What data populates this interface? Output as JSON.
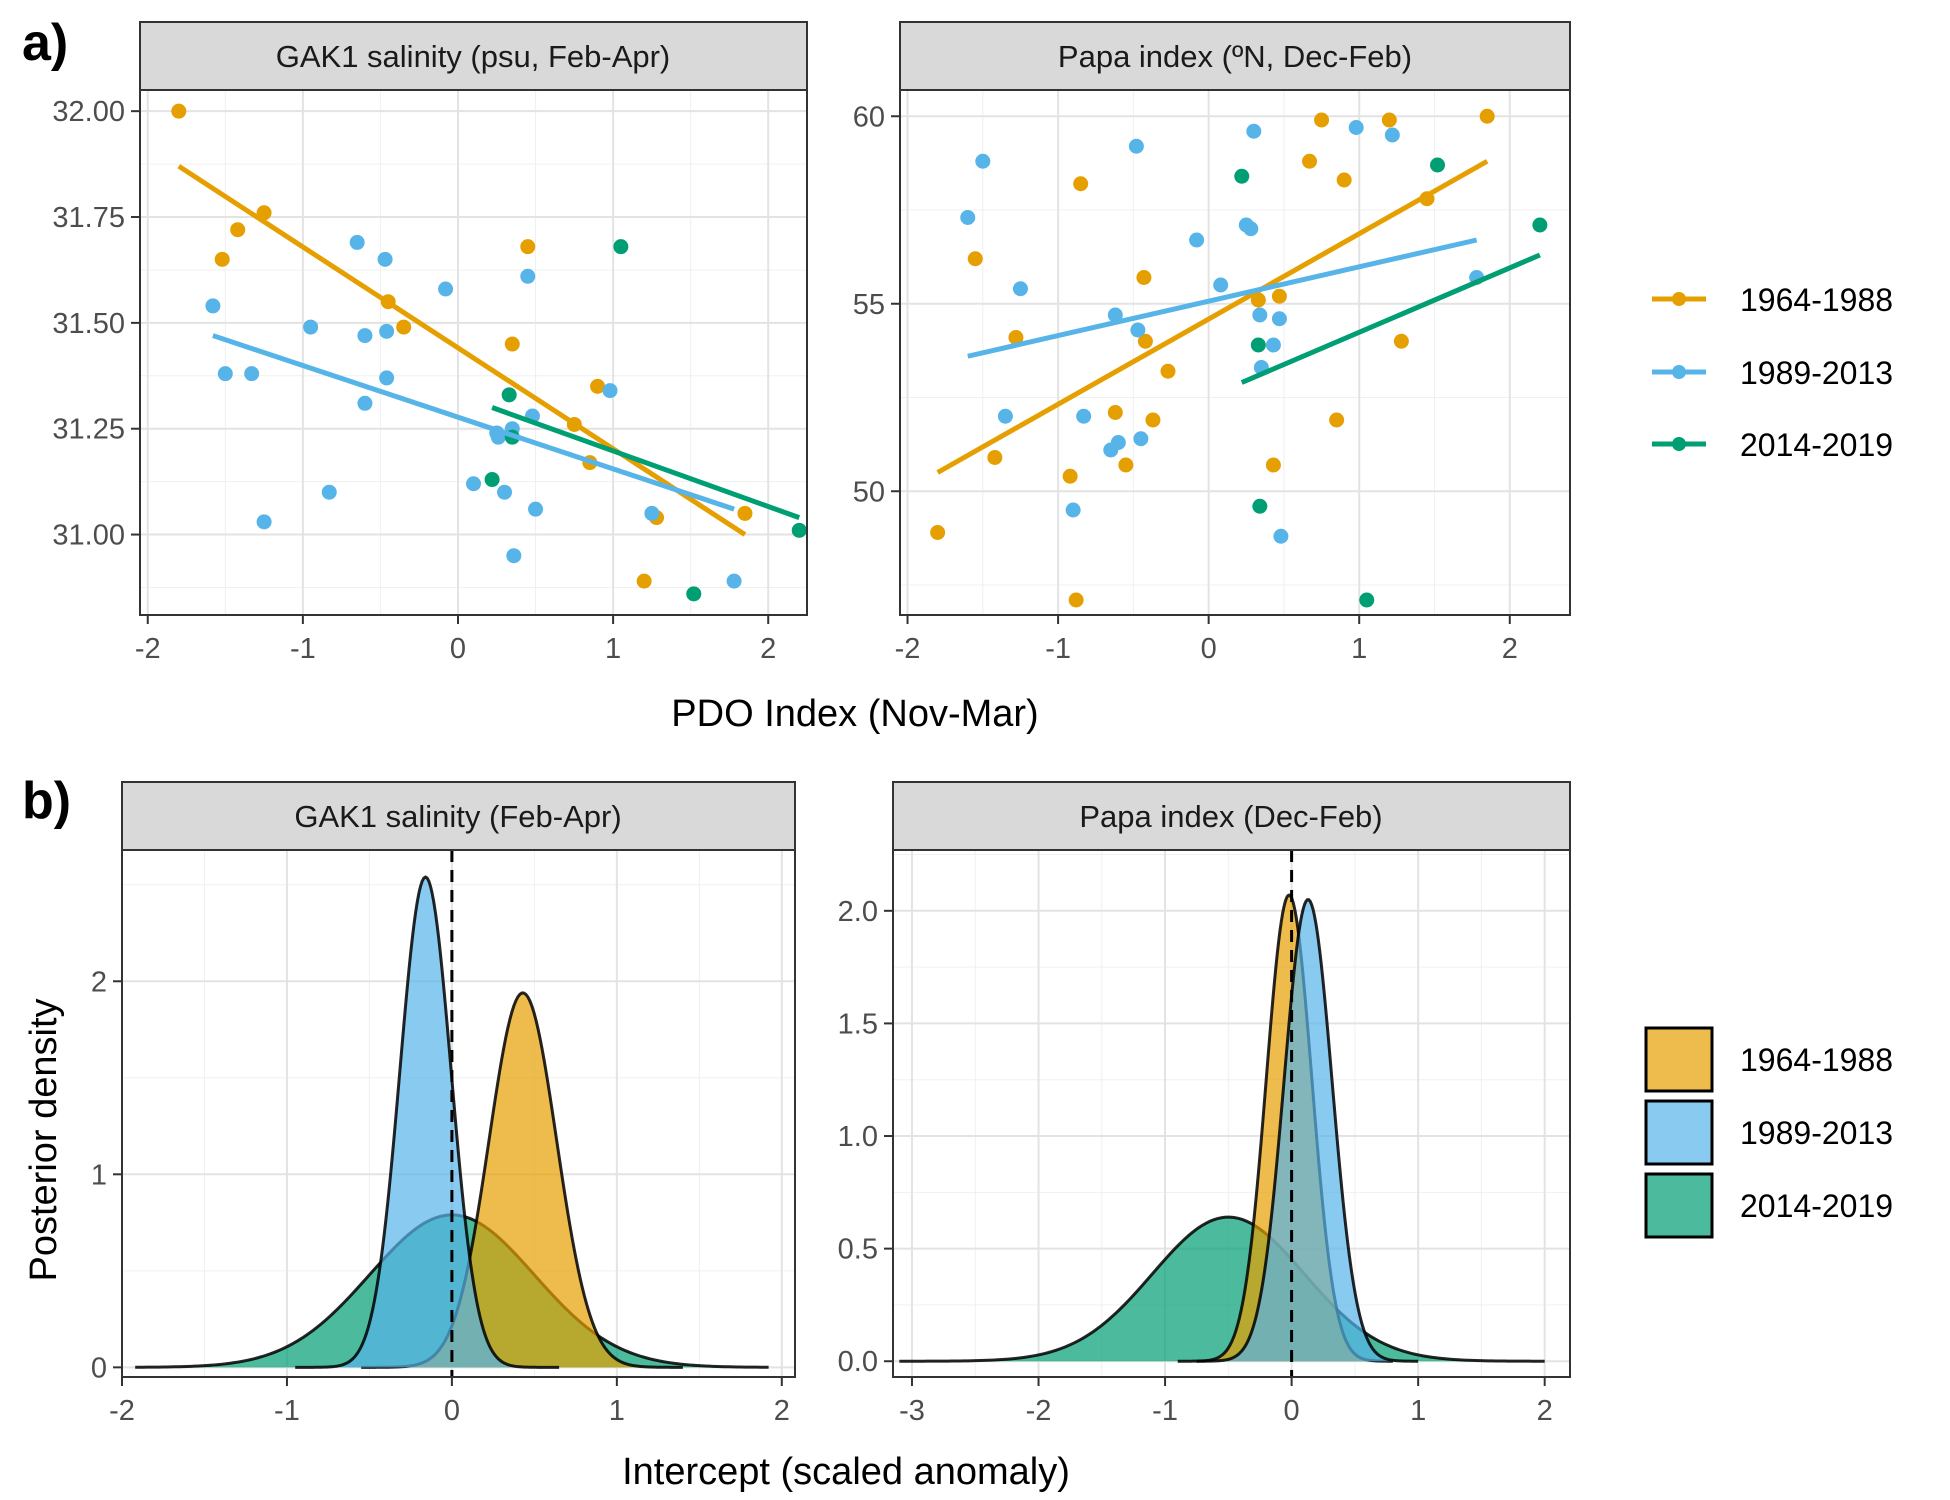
{
  "figure": {
    "label_a": "a)",
    "label_b": "b)",
    "xlabel_a": "PDO Index (Nov-Mar)",
    "xlabel_b": "Intercept (scaled anomaly)",
    "ylabel_b": "Posterior density"
  },
  "legend_a": [
    {
      "label": "1964-1988",
      "color": "#E69F00"
    },
    {
      "label": "1989-2013",
      "color": "#56B4E9"
    },
    {
      "label": "2014-2019",
      "color": "#009E73"
    }
  ],
  "legend_b": [
    {
      "label": "1964-1988",
      "color": "#E69F00"
    },
    {
      "label": "1989-2013",
      "color": "#56B4E9"
    },
    {
      "label": "2014-2019",
      "color": "#009E73"
    }
  ],
  "chart_data": [
    {
      "type": "scatter",
      "title": "GAK1 salinity (psu, Feb-Apr)",
      "xlabel": "PDO Index (Nov-Mar)",
      "ylabel": "",
      "xlim": [
        -2.05,
        2.25
      ],
      "ylim": [
        30.81,
        32.05
      ],
      "xticks": [
        -2,
        -1,
        0,
        1,
        2
      ],
      "xtick_labels": [
        "-2",
        "-1",
        "0",
        "1",
        "2"
      ],
      "yticks": [
        31.0,
        31.25,
        31.5,
        31.75,
        32.0
      ],
      "ytick_labels": [
        "31.00",
        "31.25",
        "31.50",
        "31.75",
        "32.00"
      ],
      "grid": true,
      "series": [
        {
          "name": "1964-1988",
          "color": "#E69F00",
          "points": [
            [
              -1.8,
              32.0
            ],
            [
              -1.52,
              31.65
            ],
            [
              -1.42,
              31.72
            ],
            [
              -1.25,
              31.76
            ],
            [
              -0.45,
              31.55
            ],
            [
              -0.35,
              31.49
            ],
            [
              0.35,
              31.45
            ],
            [
              0.45,
              31.68
            ],
            [
              0.75,
              31.26
            ],
            [
              0.85,
              31.17
            ],
            [
              0.9,
              31.35
            ],
            [
              1.2,
              30.89
            ],
            [
              1.28,
              31.04
            ],
            [
              1.85,
              31.05
            ]
          ],
          "fit": [
            [
              -1.8,
              31.87
            ],
            [
              1.85,
              31.0
            ]
          ]
        },
        {
          "name": "1989-2013",
          "color": "#56B4E9",
          "points": [
            [
              -1.58,
              31.54
            ],
            [
              -1.5,
              31.38
            ],
            [
              -1.33,
              31.38
            ],
            [
              -1.25,
              31.03
            ],
            [
              -0.95,
              31.49
            ],
            [
              -0.83,
              31.1
            ],
            [
              -0.65,
              31.69
            ],
            [
              -0.6,
              31.47
            ],
            [
              -0.6,
              31.31
            ],
            [
              -0.47,
              31.65
            ],
            [
              -0.46,
              31.48
            ],
            [
              -0.46,
              31.37
            ],
            [
              -0.08,
              31.58
            ],
            [
              0.1,
              31.12
            ],
            [
              0.25,
              31.24
            ],
            [
              0.26,
              31.23
            ],
            [
              0.3,
              31.1
            ],
            [
              0.35,
              31.25
            ],
            [
              0.36,
              30.95
            ],
            [
              0.45,
              31.61
            ],
            [
              0.48,
              31.28
            ],
            [
              0.5,
              31.06
            ],
            [
              0.98,
              31.34
            ],
            [
              1.25,
              31.05
            ],
            [
              1.78,
              30.89
            ]
          ],
          "fit": [
            [
              -1.58,
              31.47
            ],
            [
              1.78,
              31.06
            ]
          ]
        },
        {
          "name": "2014-2019",
          "color": "#009E73",
          "points": [
            [
              0.22,
              31.13
            ],
            [
              0.33,
              31.33
            ],
            [
              0.35,
              31.23
            ],
            [
              1.05,
              31.68
            ],
            [
              1.52,
              30.86
            ],
            [
              2.2,
              31.01
            ]
          ],
          "fit": [
            [
              0.22,
              31.3
            ],
            [
              2.2,
              31.04
            ]
          ]
        }
      ]
    },
    {
      "type": "scatter",
      "title": "Papa index (ºN, Dec-Feb)",
      "xlabel": "PDO Index (Nov-Mar)",
      "ylabel": "",
      "xlim": [
        -2.05,
        2.4
      ],
      "ylim": [
        46.7,
        60.7
      ],
      "xticks": [
        -2,
        -1,
        0,
        1,
        2
      ],
      "xtick_labels": [
        "-2",
        "-1",
        "0",
        "1",
        "2"
      ],
      "yticks": [
        50,
        55,
        60
      ],
      "ytick_labels": [
        "50",
        "55",
        "60"
      ],
      "grid": true,
      "series": [
        {
          "name": "1964-1988",
          "color": "#E69F00",
          "points": [
            [
              -1.8,
              48.9
            ],
            [
              -1.55,
              56.2
            ],
            [
              -1.42,
              50.9
            ],
            [
              -1.28,
              54.1
            ],
            [
              -0.92,
              50.4
            ],
            [
              -0.88,
              47.1
            ],
            [
              -0.85,
              58.2
            ],
            [
              -0.62,
              52.1
            ],
            [
              -0.55,
              50.7
            ],
            [
              -0.43,
              55.7
            ],
            [
              -0.42,
              54.0
            ],
            [
              -0.37,
              51.9
            ],
            [
              -0.27,
              53.2
            ],
            [
              0.33,
              55.1
            ],
            [
              0.43,
              50.7
            ],
            [
              0.47,
              55.2
            ],
            [
              0.67,
              58.8
            ],
            [
              0.75,
              59.9
            ],
            [
              0.85,
              51.9
            ],
            [
              0.9,
              58.3
            ],
            [
              1.2,
              59.9
            ],
            [
              1.28,
              54.0
            ],
            [
              1.45,
              57.8
            ],
            [
              1.85,
              60.0
            ]
          ],
          "fit": [
            [
              -1.8,
              50.5
            ],
            [
              1.85,
              58.8
            ]
          ]
        },
        {
          "name": "1989-2013",
          "color": "#56B4E9",
          "points": [
            [
              -1.6,
              57.3
            ],
            [
              -1.5,
              58.8
            ],
            [
              -1.35,
              52.0
            ],
            [
              -1.25,
              55.4
            ],
            [
              -0.9,
              49.5
            ],
            [
              -0.83,
              52.0
            ],
            [
              -0.65,
              51.1
            ],
            [
              -0.62,
              54.7
            ],
            [
              -0.6,
              51.3
            ],
            [
              -0.48,
              59.2
            ],
            [
              -0.47,
              54.3
            ],
            [
              -0.45,
              51.4
            ],
            [
              -0.08,
              56.7
            ],
            [
              0.08,
              55.5
            ],
            [
              0.25,
              57.1
            ],
            [
              0.28,
              57.0
            ],
            [
              0.3,
              59.6
            ],
            [
              0.34,
              54.7
            ],
            [
              0.35,
              53.3
            ],
            [
              0.43,
              53.9
            ],
            [
              0.47,
              54.6
            ],
            [
              0.48,
              48.8
            ],
            [
              0.98,
              59.7
            ],
            [
              1.22,
              59.5
            ],
            [
              1.78,
              55.7
            ]
          ],
          "fit": [
            [
              -1.6,
              53.6
            ],
            [
              1.78,
              56.7
            ]
          ]
        },
        {
          "name": "2014-2019",
          "color": "#009E73",
          "points": [
            [
              0.22,
              58.4
            ],
            [
              0.33,
              53.9
            ],
            [
              0.34,
              49.6
            ],
            [
              1.05,
              47.1
            ],
            [
              1.52,
              58.7
            ],
            [
              2.2,
              57.1
            ]
          ],
          "fit": [
            [
              0.22,
              52.9
            ],
            [
              2.2,
              56.3
            ]
          ]
        }
      ]
    },
    {
      "type": "area",
      "title": "GAK1 salinity (Feb-Apr)",
      "xlabel": "Intercept (scaled anomaly)",
      "ylabel": "Posterior density",
      "xlim": [
        -2.0,
        2.08
      ],
      "ylim": [
        -0.05,
        2.68
      ],
      "xticks": [
        -2,
        -1,
        0,
        1,
        2
      ],
      "xtick_labels": [
        "-2",
        "-1",
        "0",
        "1",
        "2"
      ],
      "yticks": [
        0,
        1,
        2
      ],
      "ytick_labels": [
        "0",
        "1",
        "2"
      ],
      "grid": true,
      "vline": 0,
      "series": [
        {
          "name": "2014-2019",
          "color": "#009E73",
          "mean": 0.0,
          "sd": 0.5,
          "peak": 0.79,
          "range": [
            -1.92,
            1.92
          ]
        },
        {
          "name": "1964-1988",
          "color": "#E69F00",
          "mean": 0.43,
          "sd": 0.205,
          "peak": 1.94,
          "range": [
            -0.55,
            1.4
          ]
        },
        {
          "name": "1989-2013",
          "color": "#56B4E9",
          "mean": -0.16,
          "sd": 0.155,
          "peak": 2.54,
          "range": [
            -0.95,
            0.65
          ]
        }
      ]
    },
    {
      "type": "area",
      "title": "Papa index (Dec-Feb)",
      "xlabel": "Intercept (scaled anomaly)",
      "ylabel": "",
      "xlim": [
        -3.15,
        2.2
      ],
      "ylim": [
        -0.07,
        2.27
      ],
      "xticks": [
        -3,
        -2,
        -1,
        0,
        1,
        2
      ],
      "xtick_labels": [
        "-3",
        "-2",
        "-1",
        "0",
        "1",
        "2"
      ],
      "yticks": [
        0.0,
        0.5,
        1.0,
        1.5,
        2.0
      ],
      "ytick_labels": [
        "0.0",
        "0.5",
        "1.0",
        "1.5",
        "2.0"
      ],
      "grid": true,
      "vline": 0,
      "series": [
        {
          "name": "2014-2019",
          "color": "#009E73",
          "mean": -0.5,
          "sd": 0.6,
          "peak": 0.64,
          "range": [
            -3.1,
            2.0
          ]
        },
        {
          "name": "1964-1988",
          "color": "#E69F00",
          "mean": -0.02,
          "sd": 0.18,
          "peak": 2.07,
          "range": [
            -0.9,
            0.8
          ]
        },
        {
          "name": "1989-2013",
          "color": "#56B4E9",
          "mean": 0.13,
          "sd": 0.19,
          "peak": 2.05,
          "range": [
            -0.75,
            1.0
          ]
        }
      ]
    }
  ]
}
